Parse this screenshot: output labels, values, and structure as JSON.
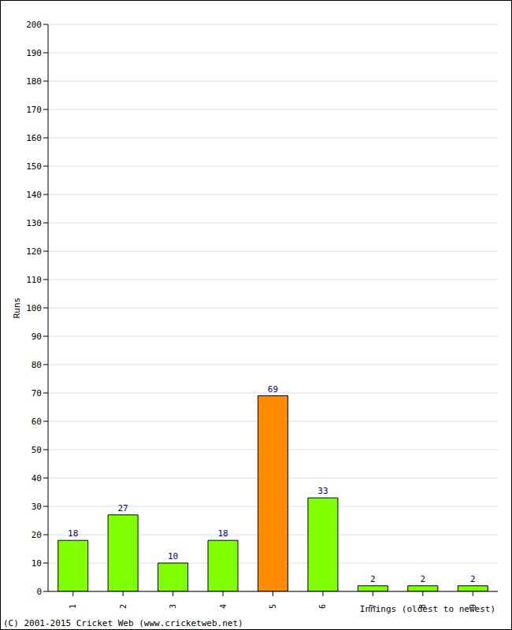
{
  "chart_data": {
    "type": "bar",
    "categories": [
      "1",
      "2",
      "3",
      "4",
      "5",
      "6",
      "7",
      "8",
      "9"
    ],
    "values": [
      18,
      27,
      10,
      18,
      69,
      33,
      2,
      2,
      2
    ],
    "colors": [
      "#80ff00",
      "#80ff00",
      "#80ff00",
      "#80ff00",
      "#ff8c00",
      "#80ff00",
      "#80ff00",
      "#80ff00",
      "#80ff00"
    ],
    "ylim": [
      0,
      200
    ],
    "yticks": [
      0,
      10,
      20,
      30,
      40,
      50,
      60,
      70,
      80,
      90,
      100,
      110,
      120,
      130,
      140,
      150,
      160,
      170,
      180,
      190,
      200
    ],
    "grid": true,
    "data_labels": true,
    "x_label": "Innings (oldest to newest)",
    "y_label": "Runs",
    "annotations": [
      "(C) 2001-2015 Cricket Web (www.cricketweb.net)"
    ]
  }
}
